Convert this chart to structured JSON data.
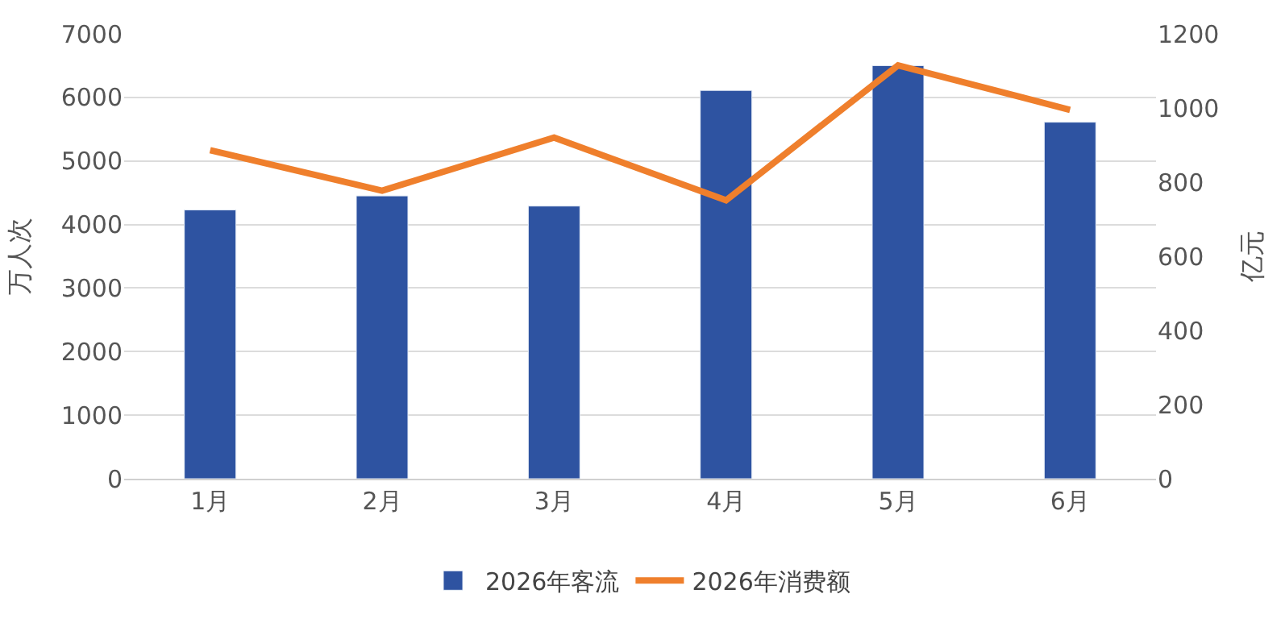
{
  "chart_data": {
    "type": "bar",
    "categories": [
      "1月",
      "2月",
      "3月",
      "4月",
      "5月",
      "6月"
    ],
    "ylabel": "万人次",
    "y2label": "亿元",
    "series": [
      {
        "name": "2026年客流",
        "color": "#2e53a1",
        "values": [
          4230,
          4450,
          4290,
          6110,
          6500,
          5610
        ]
      },
      {
        "name": "2026年消费额",
        "type": "line",
        "axis": "y2",
        "color": "#ef7f2c",
        "values": [
          886,
          777,
          920,
          751,
          1115,
          995
        ]
      }
    ],
    "ylim": [
      0,
      7000
    ],
    "yticks": [
      0,
      1000,
      2000,
      3000,
      4000,
      5000,
      6000,
      7000
    ],
    "y2lim": [
      0,
      1200
    ],
    "y2ticks": [
      0,
      200,
      400,
      600,
      800,
      1000,
      1200
    ],
    "grid": "y",
    "legend": "bottom",
    "marker": "none",
    "line_style": "solid"
  }
}
